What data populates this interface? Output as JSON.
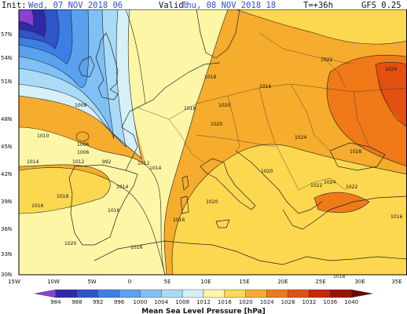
{
  "header": {
    "init_label": "Init:",
    "init_value": "Wed, 07 NOV 2018  06",
    "valid_label": "Valid:",
    "valid_value": "Thu, 08 NOV 2018  18",
    "lead_time": "T=+36h",
    "model": "GFS 0.25"
  },
  "lat_labels": [
    "57N",
    "54N",
    "51N",
    "48N",
    "45N",
    "42N",
    "39N",
    "36N",
    "33N",
    "30N"
  ],
  "lon_labels": [
    "15W",
    "10W",
    "5W",
    "0",
    "5E",
    "10E",
    "15E",
    "20E",
    "25E",
    "30E",
    "35E"
  ],
  "isobar_labels": [
    "1008",
    "1010",
    "1006",
    "1006",
    "1014",
    "1012",
    "992",
    "1012",
    "1014",
    "1014",
    "1018",
    "1016",
    "1016",
    "1020",
    "1018",
    "1016",
    "1016",
    "1020",
    "1020",
    "1020",
    "1016",
    "1022",
    "1024",
    "1024",
    "1028",
    "1022",
    "1024",
    "1022",
    "1020",
    "1016",
    "1018",
    "1018"
  ],
  "legend": {
    "title": "Mean Sea Level Pressure [hPa]",
    "ticks": [
      "984",
      "988",
      "992",
      "996",
      "1000",
      "1004",
      "1008",
      "1012",
      "1016",
      "1020",
      "1024",
      "1028",
      "1032",
      "1036",
      "1040"
    ],
    "colors": [
      "#8a3fd6",
      "#2d2aa8",
      "#2e55c9",
      "#3c7ee6",
      "#5aa2ef",
      "#7fc0f5",
      "#a9dbf7",
      "#d6f0f9",
      "#fdf6a6",
      "#fbd84f",
      "#f6ac2c",
      "#f07a18",
      "#e45010",
      "#cc2508",
      "#9c1206",
      "#6a0a04"
    ]
  }
}
